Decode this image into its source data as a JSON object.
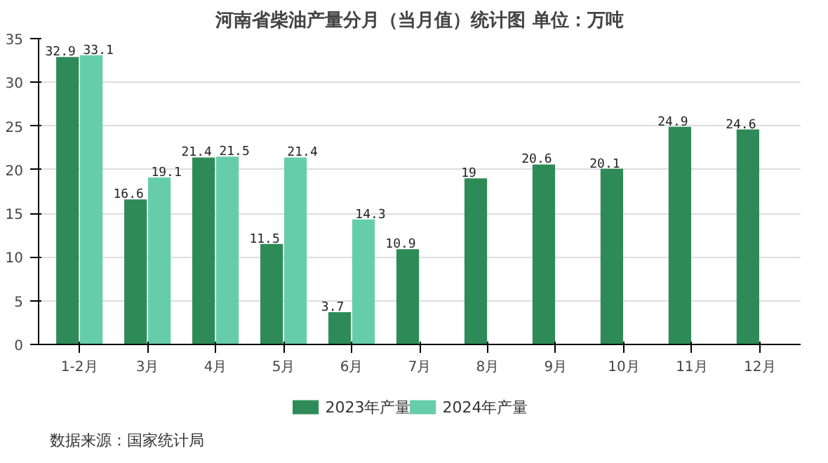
{
  "chart_data": {
    "type": "bar",
    "title": "河南省柴油产量分月（当月值）统计图 单位：万吨",
    "categories": [
      "1-2月",
      "3月",
      "4月",
      "5月",
      "6月",
      "7月",
      "8月",
      "9月",
      "10月",
      "11月",
      "12月"
    ],
    "series": [
      {
        "name": "2023年产量",
        "color": "#2e8b57",
        "values": [
          32.9,
          16.6,
          21.4,
          11.5,
          3.7,
          10.9,
          19,
          20.6,
          20.1,
          24.9,
          24.6
        ]
      },
      {
        "name": "2024年产量",
        "color": "#66cdaa",
        "values": [
          33.1,
          19.1,
          21.5,
          21.4,
          14.3,
          null,
          null,
          null,
          null,
          null,
          null
        ]
      }
    ],
    "ylim": [
      0,
      35
    ],
    "yticks": [
      0,
      5,
      10,
      15,
      20,
      25,
      30,
      35
    ],
    "grid": "y",
    "legend": "bottom",
    "data_labels": true,
    "annotations": [
      "数据来源：国家统计局"
    ]
  }
}
